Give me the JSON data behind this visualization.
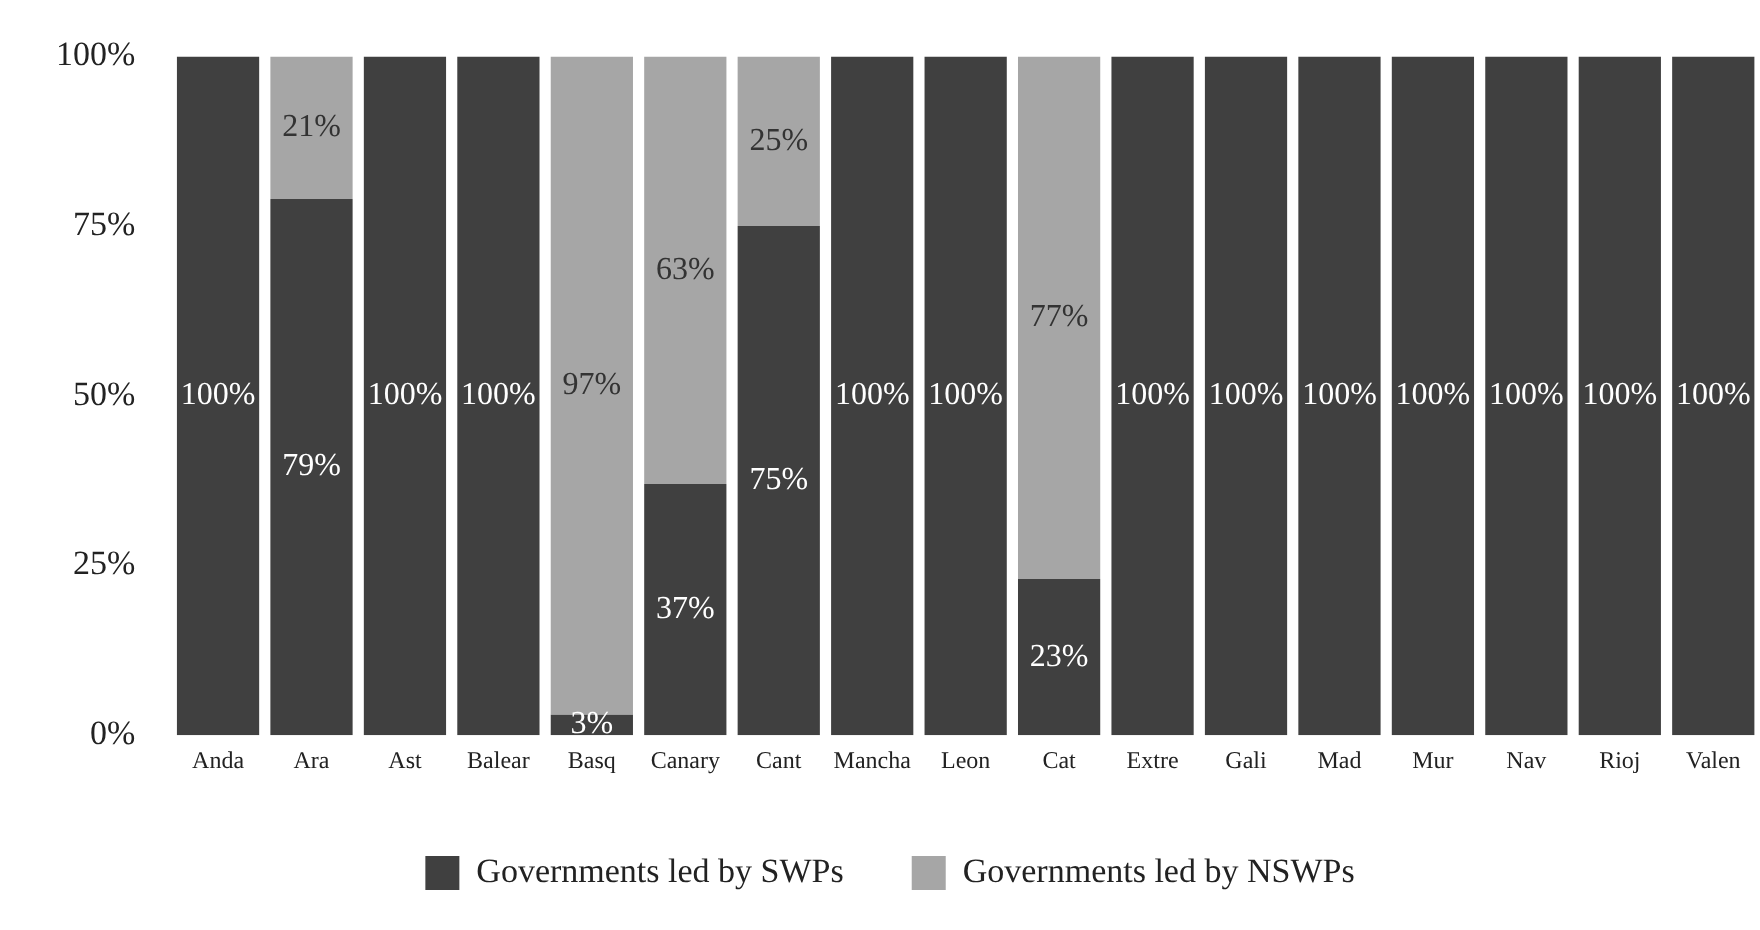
{
  "chart_data": {
    "type": "bar",
    "stacked": true,
    "categories": [
      "Anda",
      "Ara",
      "Ast",
      "Balear",
      "Basq",
      "Canary",
      "Cant",
      "Mancha",
      "Leon",
      "Cat",
      "Extre",
      "Gali",
      "Mad",
      "Mur",
      "Nav",
      "Rioj",
      "Valen"
    ],
    "series": [
      {
        "name": "Governments led by SWPs",
        "color": "#404040",
        "values": [
          100,
          79,
          100,
          100,
          3,
          37,
          75,
          100,
          100,
          23,
          100,
          100,
          100,
          100,
          100,
          100,
          100
        ],
        "value_labels": [
          "100%",
          "79%",
          "100%",
          "100%",
          "3%",
          "37%",
          "75%",
          "100%",
          "100%",
          "23%",
          "100%",
          "100%",
          "100%",
          "100%",
          "100%",
          "100%",
          "100%"
        ]
      },
      {
        "name": "Governments led by NSWPs",
        "color": "#a6a6a6",
        "values": [
          0,
          21,
          0,
          0,
          97,
          63,
          25,
          0,
          0,
          77,
          0,
          0,
          0,
          0,
          0,
          0,
          0
        ],
        "value_labels": [
          null,
          "21%",
          null,
          null,
          "97%",
          "63%",
          "25%",
          null,
          null,
          "77%",
          null,
          null,
          null,
          null,
          null,
          null,
          null
        ]
      }
    ],
    "ylim": [
      0,
      100
    ],
    "yticks": [
      {
        "value": 0,
        "label": "0%"
      },
      {
        "value": 25,
        "label": "25%"
      },
      {
        "value": 50,
        "label": "50%"
      },
      {
        "value": 75,
        "label": "75%"
      },
      {
        "value": 100,
        "label": "100%"
      }
    ],
    "grid": false,
    "legend": "bottom"
  }
}
